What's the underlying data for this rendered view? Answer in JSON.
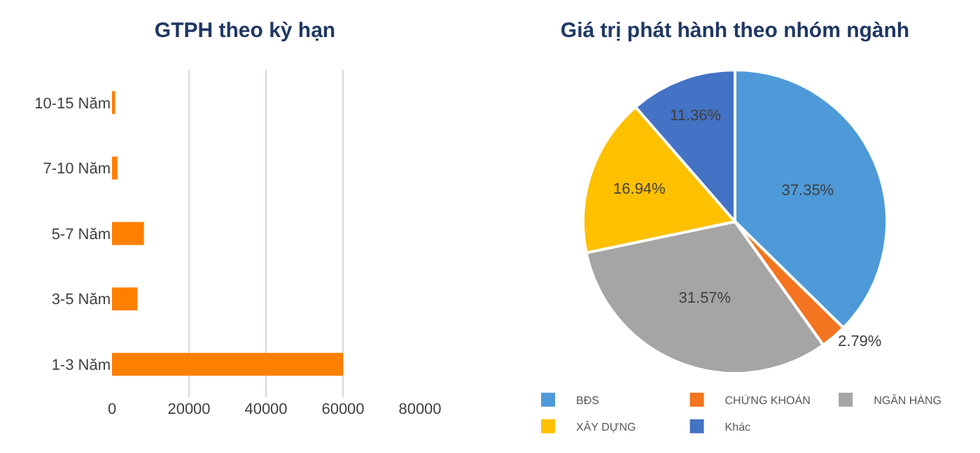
{
  "chart_data": [
    {
      "type": "bar",
      "title": "GTPH theo kỳ hạn",
      "orientation": "horizontal",
      "categories": [
        "10-15 Năm",
        "7-10 Năm",
        "5-7 Năm",
        "3-5 Năm",
        "1-3 Năm"
      ],
      "values": [
        800,
        1400,
        8300,
        6600,
        60000
      ],
      "color": "#ff7f00",
      "xlim": [
        0,
        80000
      ],
      "xticks": [
        0,
        20000,
        40000,
        60000,
        80000
      ],
      "grid": "x",
      "legend": false
    },
    {
      "type": "pie",
      "title": "Giá trị phát hành theo nhóm ngành",
      "categories": [
        "BĐS",
        "CHỨNG KHOÁN",
        "NGÂN HÀNG",
        "XÂY DỰNG",
        "Khác"
      ],
      "values": [
        37.35,
        2.79,
        31.57,
        16.94,
        11.36
      ],
      "value_labels": [
        "37.35%",
        "2.79%",
        "31.57%",
        "16.94%",
        "11.36%"
      ],
      "colors": [
        "#4e9ad8",
        "#f4741f",
        "#a5a5a5",
        "#ffc000",
        "#4472c4"
      ],
      "legend": "bottom"
    }
  ]
}
